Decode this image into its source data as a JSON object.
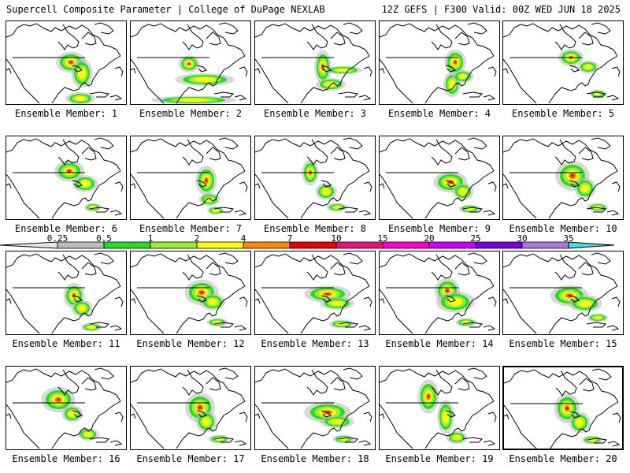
{
  "header": {
    "title_left": "Supercell Composite Parameter | College of DuPage NEXLAB",
    "title_right": "12Z GEFS | F300 Valid: 00Z WED JUN 18 2025"
  },
  "colorbar": {
    "labels": [
      "0.25",
      "0.5",
      "1",
      "2",
      "4",
      "7",
      "10",
      "15",
      "20",
      "25",
      "30",
      "35"
    ],
    "colors": [
      "#e6e6e6",
      "#bdbdbd",
      "#22dd22",
      "#99ee33",
      "#ffff00",
      "#ff8800",
      "#ee0000",
      "#ee1177",
      "#ff00cc",
      "#cc00ff",
      "#7700dd",
      "#aa77dd",
      "#44dddd"
    ]
  },
  "members": [
    {
      "label": "Ensemble Member: 1"
    },
    {
      "label": "Ensemble Member: 2"
    },
    {
      "label": "Ensemble Member: 3"
    },
    {
      "label": "Ensemble Member: 4"
    },
    {
      "label": "Ensemble Member: 5"
    },
    {
      "label": "Ensemble Member: 6"
    },
    {
      "label": "Ensemble Member: 7"
    },
    {
      "label": "Ensemble Member: 8"
    },
    {
      "label": "Ensemble Member: 9"
    },
    {
      "label": "Ensemble Member: 10"
    },
    {
      "label": "Ensemble Member: 11"
    },
    {
      "label": "Ensemble Member: 12"
    },
    {
      "label": "Ensemble Member: 13"
    },
    {
      "label": "Ensemble Member: 14"
    },
    {
      "label": "Ensemble Member: 15"
    },
    {
      "label": "Ensemble Member: 16"
    },
    {
      "label": "Ensemble Member: 17"
    },
    {
      "label": "Ensemble Member: 18"
    },
    {
      "label": "Ensemble Member: 19"
    },
    {
      "label": "Ensemble Member: 20"
    }
  ]
}
